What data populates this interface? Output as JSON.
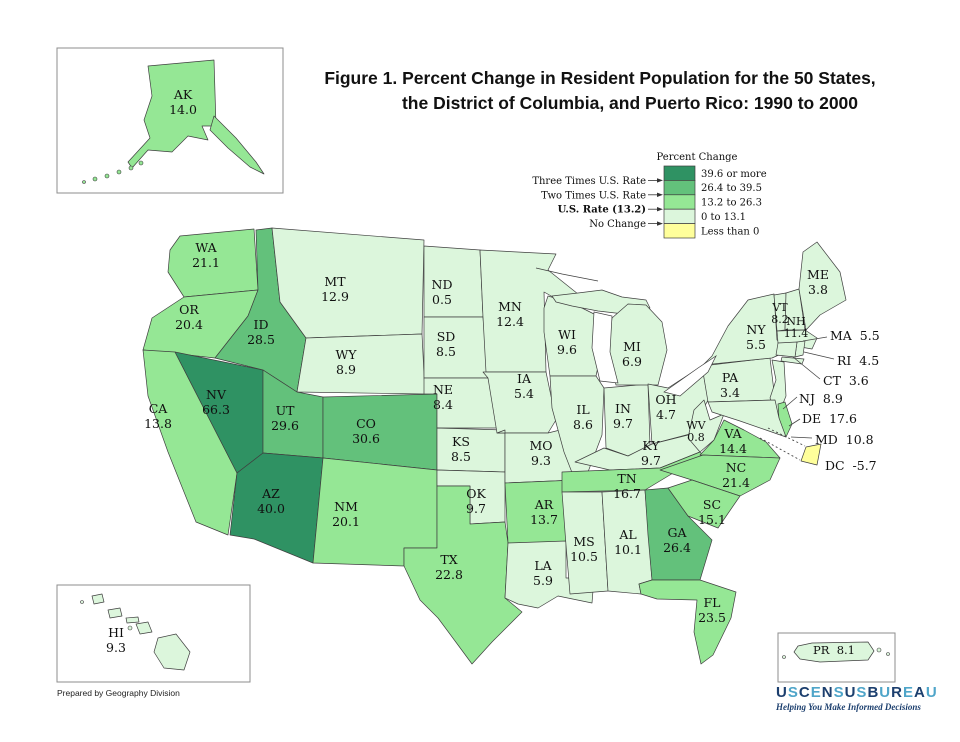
{
  "title": {
    "line1": "Figure 1.  Percent Change in Resident Population for the 50 States,",
    "line2": "the District of Columbia, and Puerto Rico: 1990 to 2000"
  },
  "legend": {
    "title": "Percent Change",
    "categories": [
      {
        "range": "39.6 or more",
        "color": "#2f9263"
      },
      {
        "range": "26.4 to 39.5",
        "color": "#63c17b"
      },
      {
        "range": "13.2 to 26.3",
        "color": "#95e795"
      },
      {
        "range": "0 to 13.1",
        "color": "#dcf6dc"
      },
      {
        "range": "Less than 0",
        "color": "#ffff9b"
      }
    ],
    "callouts": [
      "Three Times U.S. Rate",
      "Two Times U.S. Rate",
      "U.S. Rate (13.2)",
      "No Change"
    ],
    "bold_callout_index": 2
  },
  "map": {
    "states": [
      {
        "abbr": "WA",
        "value": "21.1",
        "cat": 2
      },
      {
        "abbr": "OR",
        "value": "20.4",
        "cat": 2
      },
      {
        "abbr": "CA",
        "value": "13.8",
        "cat": 2
      },
      {
        "abbr": "NV",
        "value": "66.3",
        "cat": 0
      },
      {
        "abbr": "ID",
        "value": "28.5",
        "cat": 1
      },
      {
        "abbr": "MT",
        "value": "12.9",
        "cat": 3
      },
      {
        "abbr": "WY",
        "value": "8.9",
        "cat": 3
      },
      {
        "abbr": "UT",
        "value": "29.6",
        "cat": 1
      },
      {
        "abbr": "CO",
        "value": "30.6",
        "cat": 1
      },
      {
        "abbr": "AZ",
        "value": "40.0",
        "cat": 0
      },
      {
        "abbr": "NM",
        "value": "20.1",
        "cat": 2
      },
      {
        "abbr": "ND",
        "value": "0.5",
        "cat": 3
      },
      {
        "abbr": "SD",
        "value": "8.5",
        "cat": 3
      },
      {
        "abbr": "NE",
        "value": "8.4",
        "cat": 3
      },
      {
        "abbr": "KS",
        "value": "8.5",
        "cat": 3
      },
      {
        "abbr": "OK",
        "value": "9.7",
        "cat": 3
      },
      {
        "abbr": "TX",
        "value": "22.8",
        "cat": 2
      },
      {
        "abbr": "MN",
        "value": "12.4",
        "cat": 3
      },
      {
        "abbr": "IA",
        "value": "5.4",
        "cat": 3
      },
      {
        "abbr": "MO",
        "value": "9.3",
        "cat": 3
      },
      {
        "abbr": "AR",
        "value": "13.7",
        "cat": 2
      },
      {
        "abbr": "LA",
        "value": "5.9",
        "cat": 3
      },
      {
        "abbr": "WI",
        "value": "9.6",
        "cat": 3
      },
      {
        "abbr": "IL",
        "value": "8.6",
        "cat": 3
      },
      {
        "abbr": "IN",
        "value": "9.7",
        "cat": 3
      },
      {
        "abbr": "MI",
        "value": "6.9",
        "cat": 3
      },
      {
        "abbr": "OH",
        "value": "4.7",
        "cat": 3
      },
      {
        "abbr": "KY",
        "value": "9.7",
        "cat": 3
      },
      {
        "abbr": "TN",
        "value": "16.7",
        "cat": 2
      },
      {
        "abbr": "MS",
        "value": "10.5",
        "cat": 3
      },
      {
        "abbr": "AL",
        "value": "10.1",
        "cat": 3
      },
      {
        "abbr": "WV",
        "value": "0.8",
        "cat": 3
      },
      {
        "abbr": "GA",
        "value": "26.4",
        "cat": 1
      },
      {
        "abbr": "FL",
        "value": "23.5",
        "cat": 2
      },
      {
        "abbr": "VA",
        "value": "14.4",
        "cat": 2
      },
      {
        "abbr": "NC",
        "value": "21.4",
        "cat": 2
      },
      {
        "abbr": "SC",
        "value": "15.1",
        "cat": 2
      },
      {
        "abbr": "PA",
        "value": "3.4",
        "cat": 3
      },
      {
        "abbr": "NY",
        "value": "5.5",
        "cat": 3
      },
      {
        "abbr": "VT",
        "value": "8.2",
        "cat": 3
      },
      {
        "abbr": "NH",
        "value": "11.4",
        "cat": 3
      },
      {
        "abbr": "ME",
        "value": "3.8",
        "cat": 3
      },
      {
        "abbr": "MA",
        "value": "5.5",
        "cat": 3
      },
      {
        "abbr": "RI",
        "value": "4.5",
        "cat": 3
      },
      {
        "abbr": "CT",
        "value": "3.6",
        "cat": 3
      },
      {
        "abbr": "NJ",
        "value": "8.9",
        "cat": 3
      },
      {
        "abbr": "DE",
        "value": "17.6",
        "cat": 2
      },
      {
        "abbr": "MD",
        "value": "10.8",
        "cat": 3
      },
      {
        "abbr": "DC",
        "value": "-5.7",
        "cat": 4
      },
      {
        "abbr": "AK",
        "value": "14.0",
        "cat": 2
      },
      {
        "abbr": "HI",
        "value": "9.3",
        "cat": 3
      },
      {
        "abbr": "PR",
        "value": "8.1",
        "cat": 3
      }
    ]
  },
  "footer": {
    "credit": "Prepared by Geography Division"
  },
  "logo": {
    "text": "USCENSUSBUREAU",
    "tagline": "Helping You Make Informed Decisions",
    "color_primary": "#1c3f6e",
    "color_secondary": "#4fa5c9"
  }
}
